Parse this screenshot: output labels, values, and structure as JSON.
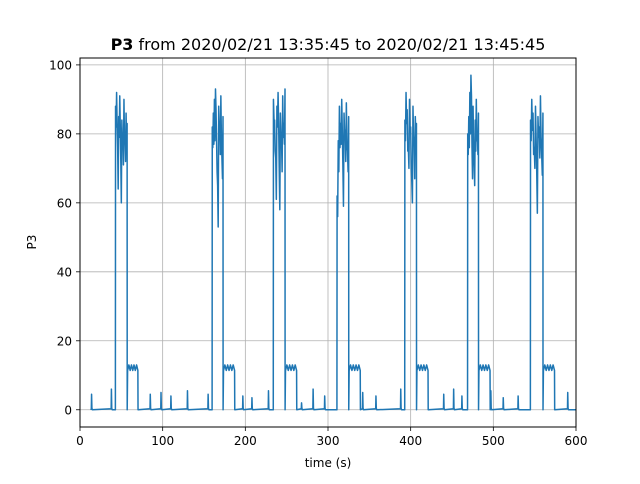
{
  "title": {
    "bold": "P3",
    "rest": " from 2020/02/21 13:35:45 to 2020/02/21 13:45:45"
  },
  "chart_data": {
    "type": "line",
    "title": "P3 from 2020/02/21 13:35:45 to 2020/02/21 13:45:45",
    "xlabel": "time (s)",
    "ylabel": "P3",
    "xlim": [
      0,
      600
    ],
    "ylim": [
      -5,
      102
    ],
    "xticks": [
      0,
      100,
      200,
      300,
      400,
      500,
      600
    ],
    "yticks": [
      0,
      20,
      40,
      60,
      80,
      100
    ],
    "grid": true,
    "line_color": "#1f77b4",
    "baseline_noise_spikes": [
      {
        "x": 14,
        "y": 4.5
      },
      {
        "x": 38,
        "y": 6
      },
      {
        "x": 67,
        "y": 11
      },
      {
        "x": 85,
        "y": 4.5
      },
      {
        "x": 98,
        "y": 5
      },
      {
        "x": 110,
        "y": 4
      },
      {
        "x": 130,
        "y": 5.5
      },
      {
        "x": 155,
        "y": 4.5
      },
      {
        "x": 187,
        "y": 6
      },
      {
        "x": 197,
        "y": 4
      },
      {
        "x": 208,
        "y": 3.5
      },
      {
        "x": 228,
        "y": 5.5
      },
      {
        "x": 268,
        "y": 2
      },
      {
        "x": 282,
        "y": 6
      },
      {
        "x": 296,
        "y": 4
      },
      {
        "x": 342,
        "y": 5
      },
      {
        "x": 358,
        "y": 4
      },
      {
        "x": 388,
        "y": 6
      },
      {
        "x": 418,
        "y": 5
      },
      {
        "x": 440,
        "y": 4.5
      },
      {
        "x": 452,
        "y": 6
      },
      {
        "x": 462,
        "y": 4
      },
      {
        "x": 497,
        "y": 5.5
      },
      {
        "x": 512,
        "y": 3.5
      },
      {
        "x": 530,
        "y": 4
      },
      {
        "x": 573,
        "y": 5.5
      },
      {
        "x": 590,
        "y": 5
      }
    ],
    "pulses": [
      {
        "start": 43,
        "end": 57,
        "high": [
          88,
          92,
          76,
          85,
          91,
          72,
          84,
          80,
          90,
          78,
          86,
          83
        ],
        "plateau_end": 70,
        "plateau": 12
      },
      {
        "start": 160,
        "end": 173,
        "high": [
          82,
          86,
          90,
          93,
          78,
          65,
          88,
          83,
          91,
          73,
          85
        ],
        "plateau_end": 187,
        "plateau": 12
      },
      {
        "start": 234,
        "end": 248,
        "high": [
          90,
          84,
          73,
          88,
          92,
          70,
          86,
          78,
          91,
          83,
          93
        ],
        "plateau_end": 262,
        "plateau": 12
      },
      {
        "start": 311,
        "end": 325,
        "high": [
          62,
          78,
          88,
          83,
          90,
          71,
          86,
          81,
          89,
          75,
          85
        ],
        "plateau_end": 339,
        "plateau": 12
      },
      {
        "start": 393,
        "end": 407,
        "high": [
          84,
          92,
          87,
          76,
          90,
          82,
          66,
          88,
          79,
          85,
          83
        ],
        "plateau_end": 421,
        "plateau": 12
      },
      {
        "start": 469,
        "end": 482,
        "high": [
          80,
          85,
          92,
          97,
          76,
          88,
          71,
          84,
          90,
          80,
          86
        ],
        "plateau_end": 496,
        "plateau": 12
      },
      {
        "start": 545,
        "end": 560,
        "high": [
          84,
          90,
          86,
          76,
          88,
          69,
          85,
          82,
          91,
          74,
          86
        ],
        "plateau_end": 574,
        "plateau": 12
      }
    ]
  }
}
